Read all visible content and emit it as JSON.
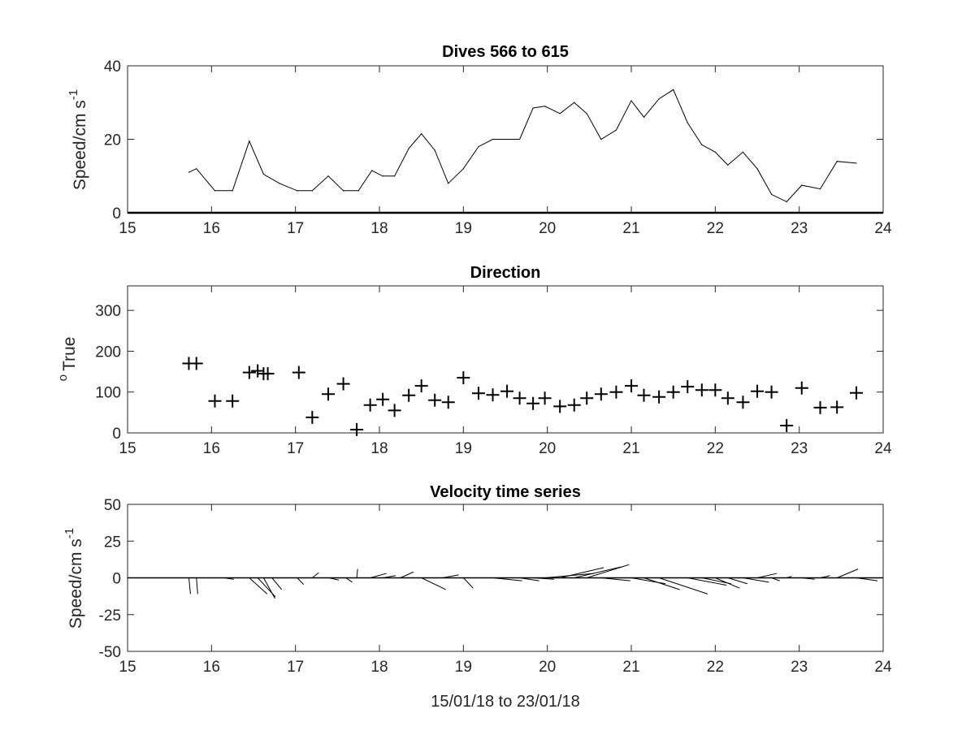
{
  "chart_data": [
    {
      "type": "line",
      "title": "Dives 566 to 615",
      "ylabel": "Speed/cm s",
      "ylabel_sup": "-1",
      "xlim": [
        15,
        24
      ],
      "ylim": [
        0,
        40
      ],
      "xticks": [
        "15",
        "16",
        "17",
        "18",
        "19",
        "20",
        "21",
        "22",
        "23",
        "24"
      ],
      "yticks": [
        "0",
        "20",
        "40"
      ],
      "grid": false,
      "series": [
        {
          "x": [
            15.73,
            15.82,
            16.04,
            16.25,
            16.45,
            16.62,
            16.81,
            17.02,
            17.2,
            17.39,
            17.57,
            17.75,
            17.91,
            18.04,
            18.18,
            18.35,
            18.5,
            18.66,
            18.82,
            19.0,
            19.18,
            19.35,
            19.52,
            19.67,
            19.83,
            19.97,
            20.15,
            20.32,
            20.47,
            20.64,
            20.82,
            21.0,
            21.15,
            21.33,
            21.5,
            21.67,
            21.84,
            22.0,
            22.15,
            22.33,
            22.5,
            22.67,
            22.85,
            23.03,
            23.25,
            23.45,
            23.68
          ],
          "y": [
            11,
            12,
            6,
            6,
            19.5,
            10.5,
            8,
            6,
            6,
            10,
            6,
            6,
            11.5,
            10,
            10,
            17.5,
            21.5,
            17,
            8,
            12,
            18,
            20,
            20,
            20,
            28.5,
            29,
            27,
            30,
            27,
            20,
            22.5,
            30.5,
            26,
            31,
            33.5,
            24.5,
            18.5,
            16.5,
            13,
            16.5,
            12,
            5,
            3,
            7.5,
            6.5,
            14,
            13.5
          ]
        }
      ]
    },
    {
      "type": "scatter",
      "title": "Direction",
      "ylabel": "True",
      "ylabel_sup": "o",
      "xlim": [
        15,
        24
      ],
      "ylim": [
        0,
        360
      ],
      "xticks": [
        "15",
        "16",
        "17",
        "18",
        "19",
        "20",
        "21",
        "22",
        "23",
        "24"
      ],
      "yticks": [
        "0",
        "100",
        "200",
        "300"
      ],
      "marker": "+",
      "grid": false,
      "series": [
        {
          "x": [
            15.73,
            15.82,
            16.04,
            16.25,
            16.45,
            16.55,
            16.62,
            16.67,
            17.04,
            17.2,
            17.39,
            17.57,
            17.73,
            17.89,
            18.04,
            18.18,
            18.35,
            18.5,
            18.66,
            18.82,
            19.0,
            19.18,
            19.35,
            19.52,
            19.67,
            19.83,
            19.97,
            20.15,
            20.32,
            20.47,
            20.64,
            20.82,
            21.0,
            21.15,
            21.33,
            21.5,
            21.67,
            21.84,
            22.0,
            22.15,
            22.33,
            22.5,
            22.67,
            22.85,
            23.03,
            23.25,
            23.45,
            23.68
          ],
          "y": [
            170,
            170,
            78,
            78,
            148,
            152,
            145,
            145,
            148,
            38,
            95,
            120,
            8,
            68,
            82,
            55,
            92,
            115,
            80,
            75,
            135,
            97,
            93,
            102,
            85,
            72,
            85,
            65,
            68,
            85,
            95,
            100,
            115,
            92,
            88,
            100,
            113,
            105,
            105,
            85,
            75,
            102,
            100,
            18,
            110,
            62,
            63,
            98
          ]
        }
      ]
    },
    {
      "type": "quiver",
      "title": "Velocity time series",
      "ylabel": "Speed/cm s",
      "ylabel_sup": "-1",
      "xlabel": "15/01/18 to 23/01/18",
      "xlim": [
        15,
        24
      ],
      "ylim": [
        -50,
        50
      ],
      "xticks": [
        "15",
        "16",
        "17",
        "18",
        "19",
        "20",
        "21",
        "22",
        "23",
        "24"
      ],
      "yticks": [
        "-50",
        "-25",
        "0",
        "25",
        "50"
      ],
      "grid": false,
      "baseline": 0,
      "vectors": [
        {
          "t": 15.73,
          "u": 1.0,
          "v": -11.0
        },
        {
          "t": 15.82,
          "u": 0.8,
          "v": -11.0
        },
        {
          "t": 16.15,
          "u": 6.0,
          "v": -1.0
        },
        {
          "t": 16.45,
          "u": 11.0,
          "v": -11.0
        },
        {
          "t": 16.55,
          "u": 11.0,
          "v": -13.0
        },
        {
          "t": 16.62,
          "u": 7.0,
          "v": -14.0
        },
        {
          "t": 16.72,
          "u": 6.0,
          "v": -8.0
        },
        {
          "t": 17.02,
          "u": 4.0,
          "v": -4.5
        },
        {
          "t": 17.2,
          "u": 4.0,
          "v": 3.5
        },
        {
          "t": 17.4,
          "u": 6.0,
          "v": -1.5
        },
        {
          "t": 17.6,
          "u": 4.0,
          "v": -3.0
        },
        {
          "t": 17.73,
          "u": 0.5,
          "v": 6.0
        },
        {
          "t": 17.89,
          "u": 10.0,
          "v": 3.0
        },
        {
          "t": 18.04,
          "u": 8.0,
          "v": 1.5
        },
        {
          "t": 18.25,
          "u": 8.0,
          "v": 4.0
        },
        {
          "t": 18.5,
          "u": 15.0,
          "v": -8.0
        },
        {
          "t": 18.75,
          "u": 10.0,
          "v": 2.0
        },
        {
          "t": 19.0,
          "u": 6.0,
          "v": -7.0
        },
        {
          "t": 19.2,
          "u": 12.0,
          "v": 0.0
        },
        {
          "t": 19.35,
          "u": 18.0,
          "v": -2.0
        },
        {
          "t": 19.52,
          "u": 16.0,
          "v": 0.0
        },
        {
          "t": 19.67,
          "u": 12.0,
          "v": -2.0
        },
        {
          "t": 19.83,
          "u": 13.0,
          "v": -1.0
        },
        {
          "t": 19.97,
          "u": 30.0,
          "v": 3.0
        },
        {
          "t": 20.15,
          "u": 27.0,
          "v": 7.0
        },
        {
          "t": 20.32,
          "u": 29.0,
          "v": 7.5
        },
        {
          "t": 20.47,
          "u": 26.0,
          "v": 9.0
        },
        {
          "t": 20.64,
          "u": 18.0,
          "v": -2.0
        },
        {
          "t": 20.82,
          "u": 22.0,
          "v": 0.0
        },
        {
          "t": 21.0,
          "u": 21.0,
          "v": -4.0
        },
        {
          "t": 21.15,
          "u": 22.0,
          "v": -8.0
        },
        {
          "t": 21.33,
          "u": 30.0,
          "v": -11.0
        },
        {
          "t": 21.5,
          "u": 34.0,
          "v": 0.0
        },
        {
          "t": 21.67,
          "u": 24.0,
          "v": -5.0
        },
        {
          "t": 21.84,
          "u": 18.0,
          "v": -4.0
        },
        {
          "t": 22.0,
          "u": 15.0,
          "v": -7.0
        },
        {
          "t": 22.15,
          "u": 12.0,
          "v": -4.0
        },
        {
          "t": 22.33,
          "u": 16.0,
          "v": -3.0
        },
        {
          "t": 22.5,
          "u": 12.0,
          "v": 3.0
        },
        {
          "t": 22.67,
          "u": 5.0,
          "v": -2.0
        },
        {
          "t": 22.85,
          "u": 3.0,
          "v": 1.0
        },
        {
          "t": 23.03,
          "u": 8.0,
          "v": -1.0
        },
        {
          "t": 23.25,
          "u": 6.0,
          "v": 1.5
        },
        {
          "t": 23.45,
          "u": 13.0,
          "v": 6.0
        },
        {
          "t": 23.68,
          "u": 13.0,
          "v": -2.0
        }
      ]
    }
  ]
}
